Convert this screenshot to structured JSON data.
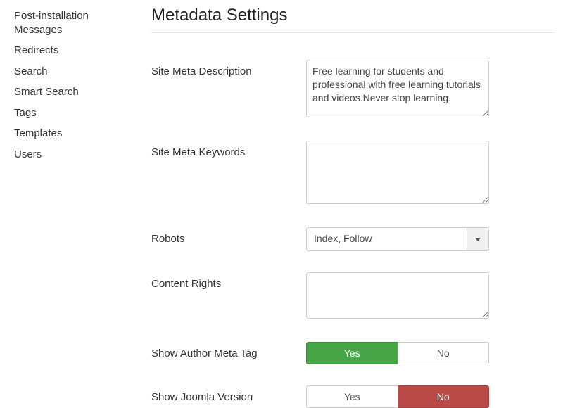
{
  "sidebar": {
    "items": [
      {
        "label": "Post-installation Messages"
      },
      {
        "label": "Redirects"
      },
      {
        "label": "Search"
      },
      {
        "label": "Smart Search"
      },
      {
        "label": "Tags"
      },
      {
        "label": "Templates"
      },
      {
        "label": "Users"
      }
    ]
  },
  "page": {
    "title": "Metadata Settings"
  },
  "fields": {
    "meta_description": {
      "label": "Site Meta Description",
      "value": "Free learning for students and professional with free learning tutorials and videos.Never stop learning."
    },
    "meta_keywords": {
      "label": "Site Meta Keywords",
      "value": ""
    },
    "robots": {
      "label": "Robots",
      "selected": "Index, Follow"
    },
    "content_rights": {
      "label": "Content Rights",
      "value": ""
    },
    "author_meta": {
      "label": "Show Author Meta Tag",
      "yes": "Yes",
      "no": "No",
      "active": "yes"
    },
    "joomla_version": {
      "label": "Show Joomla Version",
      "yes": "Yes",
      "no": "No",
      "active": "no"
    }
  },
  "colors": {
    "green": "#46a546",
    "red": "#b94a48",
    "border": "#cccccc",
    "text": "#333333"
  }
}
